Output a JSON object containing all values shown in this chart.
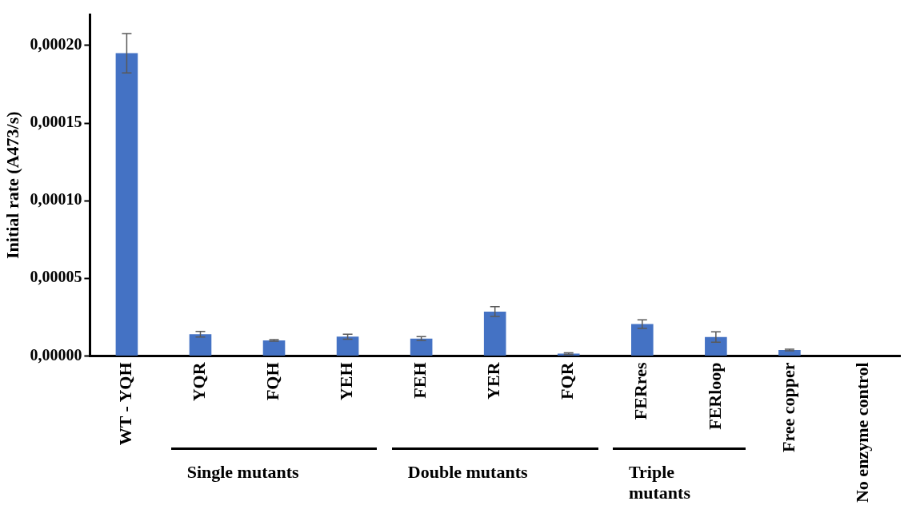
{
  "chart_data": {
    "type": "bar",
    "ylabel": "Initial rate (A473/s)",
    "categories": [
      "WT - YQH",
      "YQR",
      "FQH",
      "YEH",
      "FEH",
      "YER",
      "FQR",
      "FERres",
      "FERloop",
      "Free copper",
      "No enzyme control"
    ],
    "values": [
      0.000195,
      1.4e-05,
      1e-05,
      1.24e-05,
      1.12e-05,
      2.86e-05,
      1.5e-06,
      2.05e-05,
      1.22e-05,
      3.8e-06,
      0
    ],
    "errors": [
      1.27e-05,
      1.8e-06,
      5e-07,
      1.6e-06,
      1.2e-06,
      3.1e-06,
      5e-07,
      2.8e-06,
      3.3e-06,
      5e-07,
      null
    ],
    "color": "#4472c4",
    "ylim": [
      0,
      0.00022
    ],
    "yticks": [
      {
        "value": 0,
        "label": "0,00000"
      },
      {
        "value": 5e-05,
        "label": "0,00005"
      },
      {
        "value": 0.0001,
        "label": "0,00010"
      },
      {
        "value": 0.00015,
        "label": "0,00015"
      },
      {
        "value": 0.0002,
        "label": "0,00020"
      }
    ],
    "annotations": [
      "Single mutants",
      "Double mutants",
      "Triple mutants"
    ],
    "grid": false,
    "legend": false
  }
}
